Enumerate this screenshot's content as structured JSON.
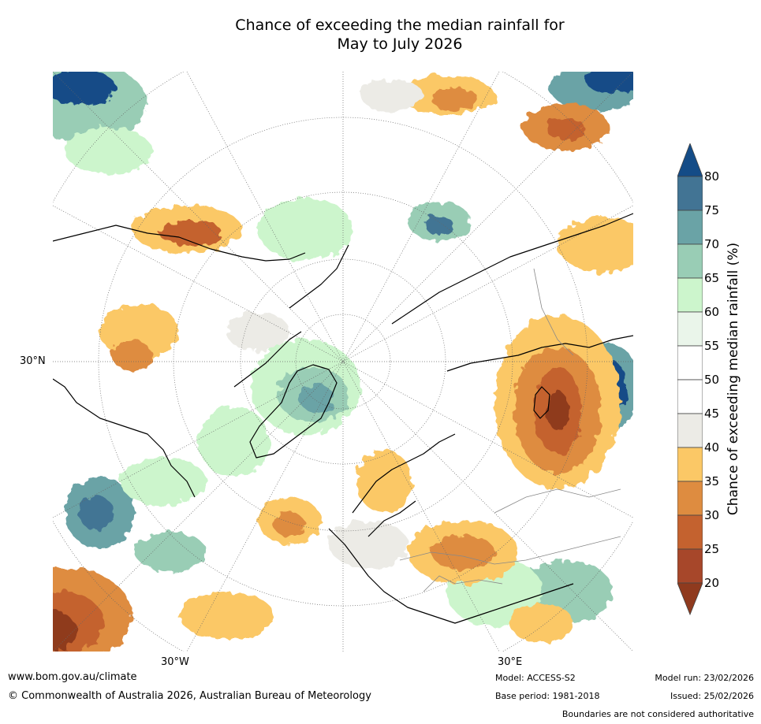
{
  "title": {
    "line1": "Chance of exceeding the median rainfall for",
    "line2": "May to July 2026"
  },
  "map": {
    "lat_labels": [
      "30°N"
    ],
    "lon_labels": [
      "30°W",
      "30°E"
    ],
    "colors": {
      "lt20": "#8f3a1e",
      "20_25": "#a7472a",
      "25_30": "#c4622f",
      "30_35": "#de8c40",
      "35_40": "#fbc866",
      "40_45": "#ecebe6",
      "45_55": "#ffffff",
      "55_60": "#eaf5ea",
      "60_65": "#ccf5cc",
      "65_70": "#99cdb5",
      "70_75": "#6aa3a6",
      "75_80": "#427494",
      "gt80": "#144c87"
    }
  },
  "colorbar": {
    "ticks": [
      "80",
      "75",
      "70",
      "65",
      "60",
      "55",
      "50",
      "45",
      "40",
      "35",
      "30",
      "25",
      "20"
    ],
    "title": "Chance of exceeding median rainfall (%)"
  },
  "footer": {
    "website": "www.bom.gov.au/climate",
    "copyright": "© Commonwealth of Australia 2026, Australian Bureau of Meteorology",
    "model": "Model: ACCESS-S2",
    "base_period": "Base period: 1981-2018",
    "model_run": "Model run: 23/02/2026",
    "issued": "Issued: 25/02/2026",
    "disclaimer": "Boundaries are not considered authoritative"
  }
}
